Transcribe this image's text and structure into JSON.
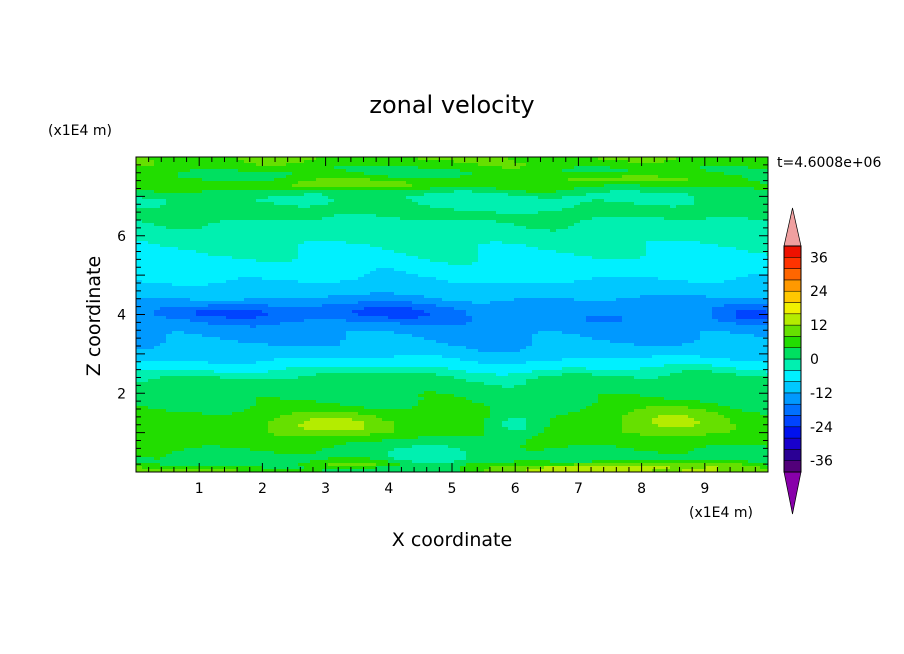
{
  "chart_data": {
    "type": "heatmap",
    "title": "zonal velocity",
    "xlabel": "X coordinate",
    "ylabel": "Z coordinate",
    "x_unit": "(x1E4 m)",
    "y_unit": "(x1E4 m)",
    "time_label": "t=4.6008e+06",
    "xlim": [
      0,
      10
    ],
    "ylim": [
      0,
      8
    ],
    "x_ticks": [
      "1",
      "2",
      "3",
      "4",
      "5",
      "6",
      "7",
      "8",
      "9"
    ],
    "y_ticks": [
      "2",
      "4",
      "6"
    ],
    "colorbar": {
      "levels": [
        -40,
        -36,
        -32,
        -28,
        -24,
        -20,
        -16,
        -12,
        -8,
        -4,
        0,
        4,
        8,
        12,
        16,
        20,
        24,
        28,
        32,
        36,
        40
      ],
      "labels": [
        "36",
        "24",
        "12",
        "0",
        "-12",
        "-24",
        "-36"
      ],
      "colors": [
        "#52007a",
        "#2a0094",
        "#1800cc",
        "#0011ee",
        "#0044ff",
        "#0070ff",
        "#0099ff",
        "#00c8ff",
        "#00f0ff",
        "#00f0b0",
        "#00e060",
        "#22dd00",
        "#66e000",
        "#b4ec00",
        "#f0f000",
        "#ffc800",
        "#ff9900",
        "#ff6600",
        "#ff3300",
        "#ee1100"
      ],
      "under_color": "#8800aa",
      "over_color": "#f0a0a0"
    },
    "bands": [
      {
        "z": 0.05,
        "u": 10
      },
      {
        "z": 0.3,
        "u": 2
      },
      {
        "z": 0.6,
        "u": 4
      },
      {
        "z": 1.0,
        "u": 7
      },
      {
        "z": 1.4,
        "u": 6
      },
      {
        "z": 1.8,
        "u": 3
      },
      {
        "z": 2.2,
        "u": 2
      },
      {
        "z": 2.45,
        "u": 0
      },
      {
        "z": 2.7,
        "u": -6
      },
      {
        "z": 3.1,
        "u": -11
      },
      {
        "z": 3.5,
        "u": -13
      },
      {
        "z": 3.9,
        "u": -15
      },
      {
        "z": 4.2,
        "u": -14
      },
      {
        "z": 4.6,
        "u": -10
      },
      {
        "z": 5.0,
        "u": -7
      },
      {
        "z": 5.4,
        "u": -5
      },
      {
        "z": 5.8,
        "u": -3
      },
      {
        "z": 6.2,
        "u": -1
      },
      {
        "z": 6.6,
        "u": 1
      },
      {
        "z": 7.0,
        "u": 0
      },
      {
        "z": 7.3,
        "u": 5
      },
      {
        "z": 7.6,
        "u": 3
      },
      {
        "z": 7.9,
        "u": 8
      }
    ],
    "features": [
      {
        "x": 3.1,
        "z": 1.2,
        "sx": 0.9,
        "sz": 0.3,
        "du": 7
      },
      {
        "x": 4.8,
        "z": 0.6,
        "sx": 0.9,
        "sz": 0.35,
        "du": -5
      },
      {
        "x": 6.0,
        "z": 1.2,
        "sx": 0.5,
        "sz": 0.35,
        "du": -8
      },
      {
        "x": 8.5,
        "z": 1.3,
        "sx": 0.8,
        "sz": 0.4,
        "du": 6
      },
      {
        "x": 3.9,
        "z": 0.05,
        "sx": 1.5,
        "sz": 0.1,
        "du": -10
      },
      {
        "x": 7.0,
        "z": 0.1,
        "sx": 1.4,
        "sz": 0.12,
        "du": 8
      },
      {
        "x": 1.4,
        "z": 4.05,
        "sx": 1.2,
        "sz": 0.2,
        "du": -6
      },
      {
        "x": 3.9,
        "z": 4.05,
        "sx": 1.4,
        "sz": 0.25,
        "du": -6
      },
      {
        "x": 9.7,
        "z": 4.0,
        "sx": 0.6,
        "sz": 0.25,
        "du": -6
      },
      {
        "x": 3.5,
        "z": 7.3,
        "sx": 1.5,
        "sz": 0.15,
        "du": 6
      },
      {
        "x": 7.5,
        "z": 7.45,
        "sx": 1.2,
        "sz": 0.15,
        "du": 6
      },
      {
        "x": 5.8,
        "z": 6.9,
        "sx": 1.4,
        "sz": 0.25,
        "du": -3
      }
    ]
  }
}
